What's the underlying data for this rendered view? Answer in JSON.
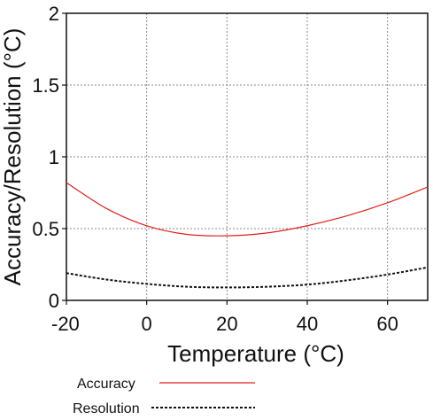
{
  "chart_data": {
    "type": "line",
    "title": "",
    "xlabel": "Temperature (°C)",
    "ylabel": "Accuracy/Resolution (°C)",
    "xlim": [
      -20,
      70
    ],
    "ylim": [
      0,
      2
    ],
    "x_ticks": [
      -20,
      0,
      20,
      40,
      60
    ],
    "x_tick_labels": [
      "-20",
      "0",
      "20",
      "40",
      "60"
    ],
    "y_ticks": [
      0,
      0.5,
      1,
      1.5,
      2
    ],
    "y_tick_labels": [
      "0",
      "0.5",
      "1",
      "1.5",
      "2"
    ],
    "grid": true,
    "legend_position": "bottom-left",
    "series": [
      {
        "name": "Accuracy",
        "color": "#e0201b",
        "style": "solid",
        "x": [
          -20,
          -10,
          0,
          10,
          20,
          30,
          40,
          50,
          60,
          70
        ],
        "y": [
          0.82,
          0.64,
          0.52,
          0.46,
          0.45,
          0.47,
          0.52,
          0.59,
          0.68,
          0.79
        ]
      },
      {
        "name": "Resolution",
        "color": "#111111",
        "style": "dotted",
        "x": [
          -20,
          -10,
          0,
          10,
          20,
          30,
          40,
          50,
          60,
          70
        ],
        "y": [
          0.19,
          0.145,
          0.115,
          0.095,
          0.09,
          0.095,
          0.11,
          0.14,
          0.18,
          0.23
        ]
      }
    ]
  }
}
